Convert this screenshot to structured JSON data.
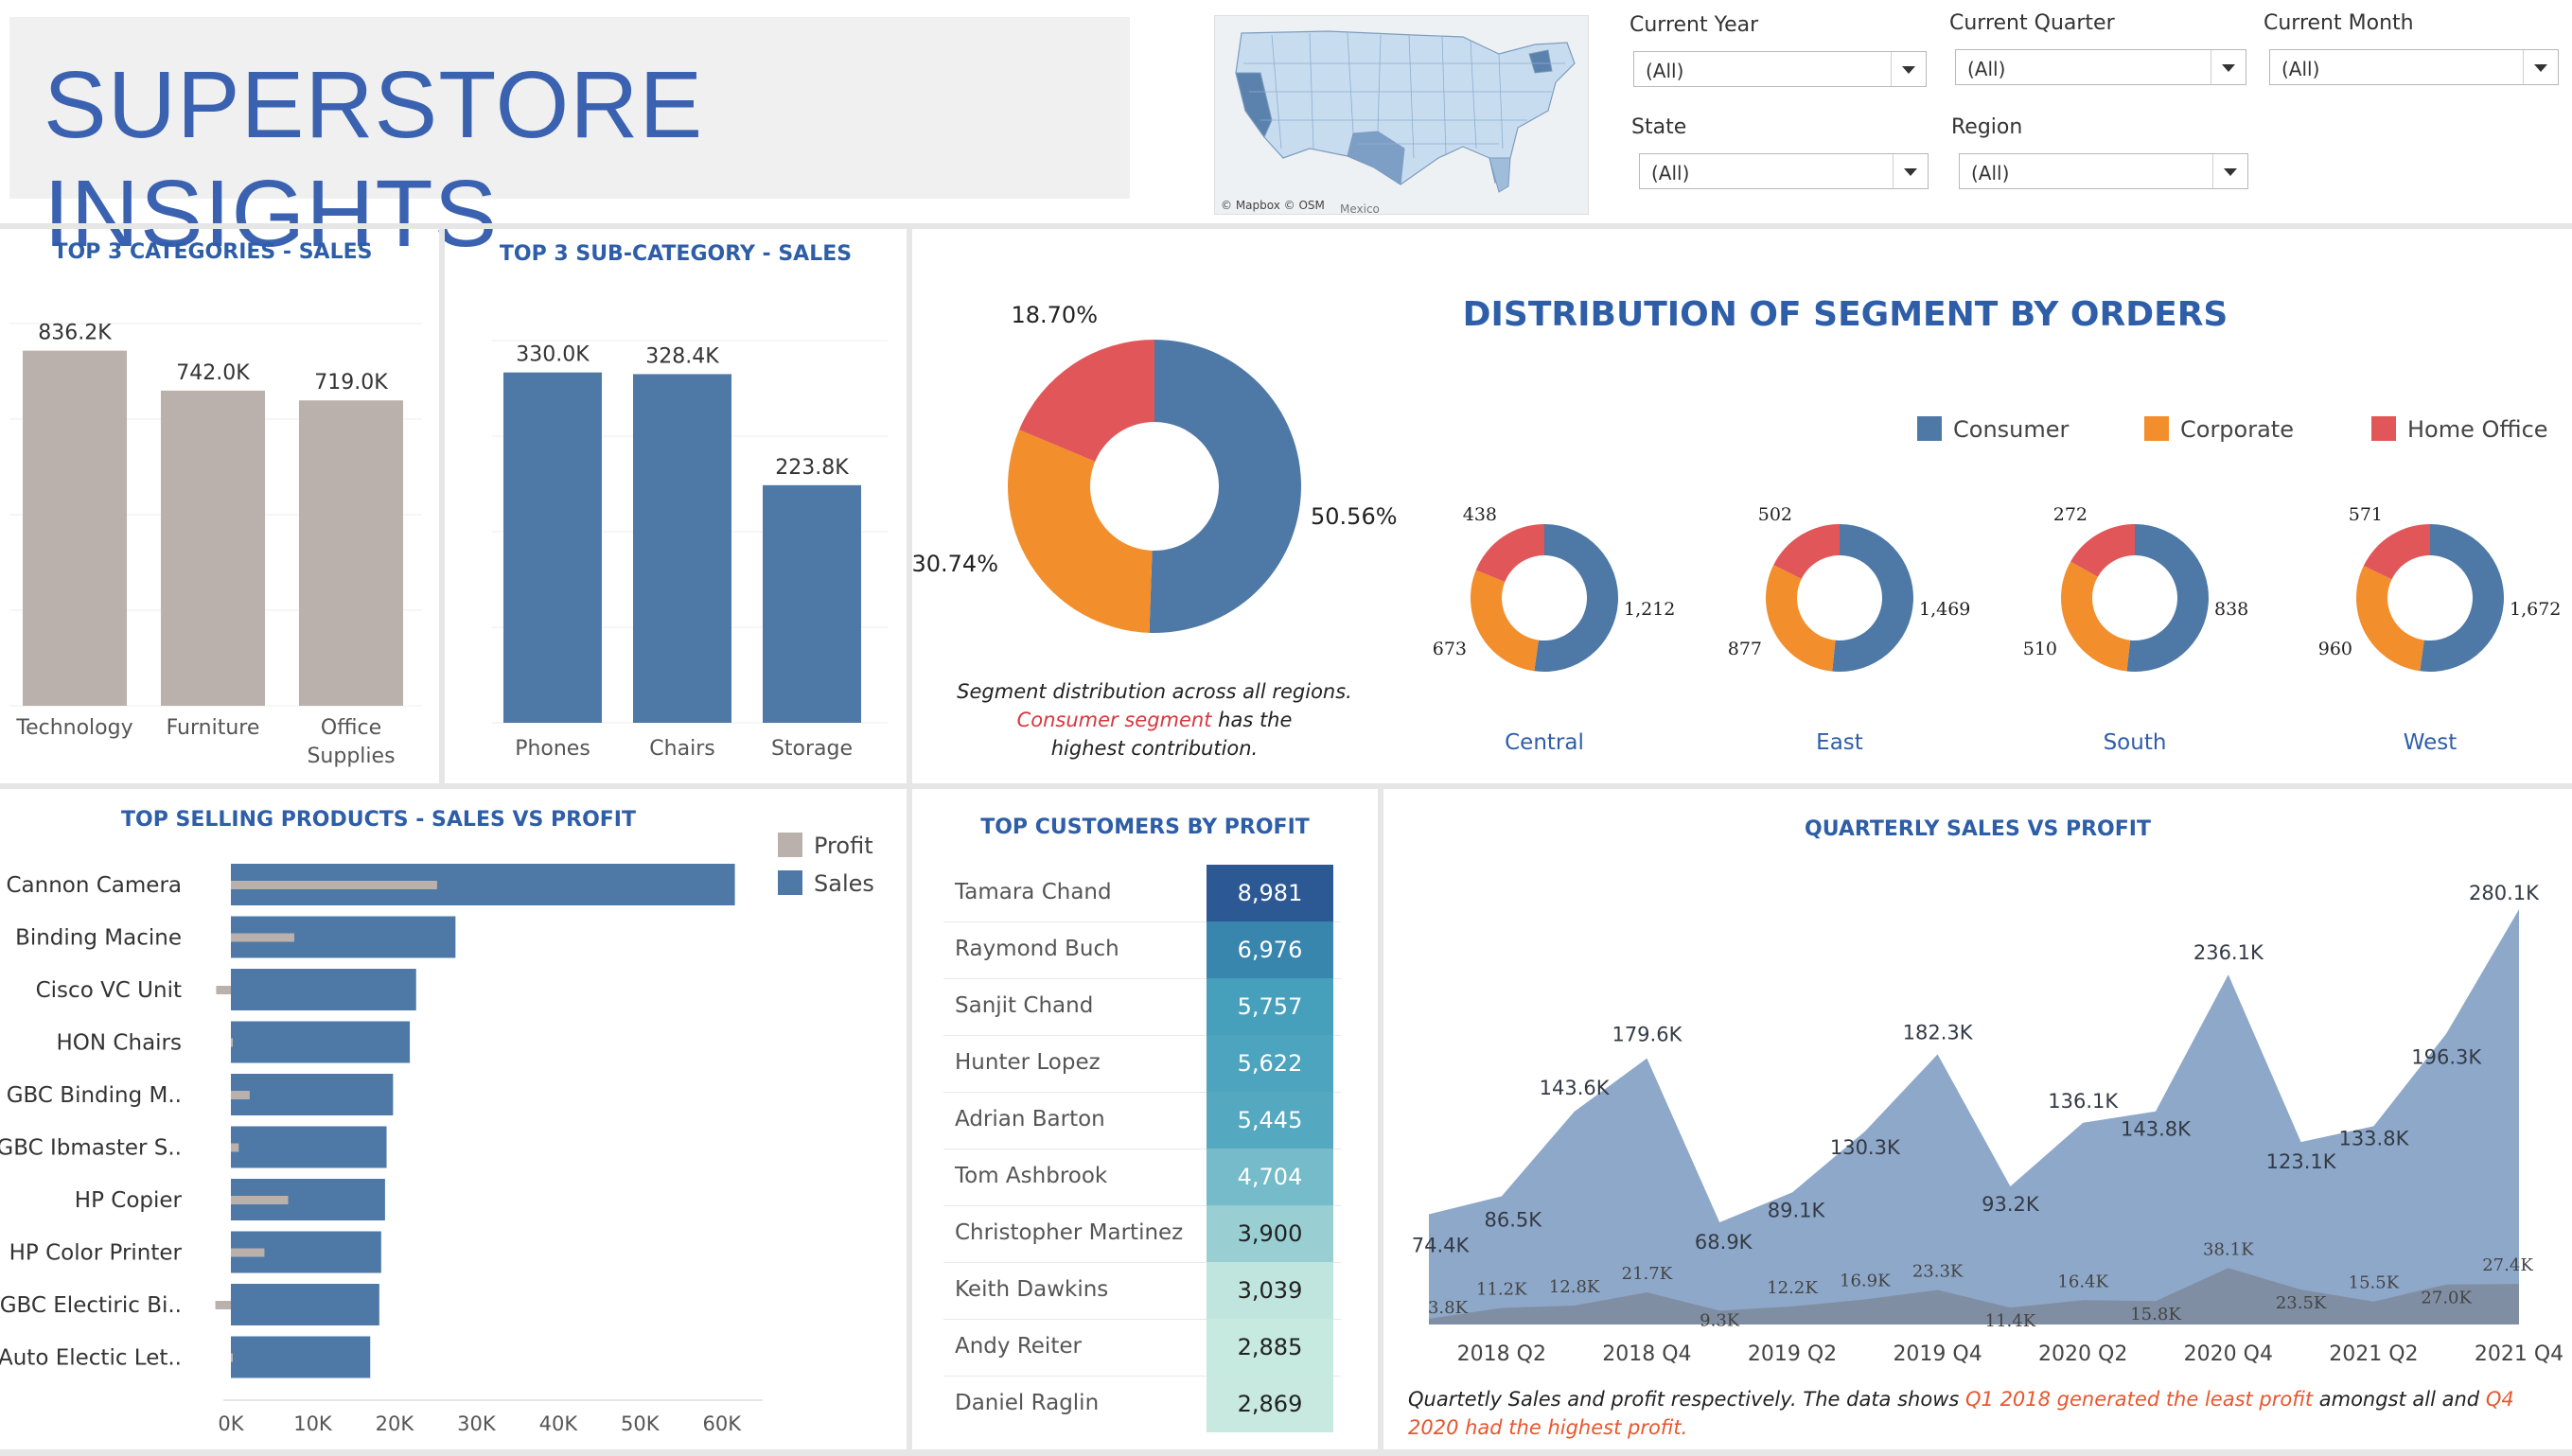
{
  "header": {
    "title": "SUPERSTORE INSIGHTS"
  },
  "map": {
    "attribution": "© Mapbox © OSM",
    "label_mexico": "Mexico"
  },
  "filters": [
    {
      "label": "Current Year",
      "value": "(All)"
    },
    {
      "label": "Current Quarter",
      "value": "(All)"
    },
    {
      "label": "Current Month",
      "value": "(All)"
    },
    {
      "label": "State",
      "value": "(All)"
    },
    {
      "label": "Region",
      "value": "(All)"
    }
  ],
  "top_categories": {
    "title": "TOP 3 CATEGORIES - SALES"
  },
  "top_subcategories": {
    "title": "TOP 3 SUB-CATEGORY - SALES"
  },
  "segment": {
    "title": "DISTRIBUTION OF SEGMENT BY ORDERS",
    "note_line1": "Segment distribution across all regions.",
    "note_line2_hl": "Consumer segment",
    "note_line2_rest": " has the",
    "note_line3": "highest contribution."
  },
  "top_products": {
    "title": "TOP SELLING PRODUCTS - SALES VS PROFIT"
  },
  "top_customers": {
    "title": "TOP CUSTOMERS BY PROFIT"
  },
  "quarterly": {
    "title": "QUARTERLY SALES VS PROFIT",
    "note_a": "Quartetly Sales and profit respectively. The data shows ",
    "note_b": "Q1 2018 generated the least profit",
    "note_c": " amongst all and  ",
    "note_d": "Q4",
    "note_e": "2020 had the highest profit."
  },
  "colors": {
    "consumer": "#4e79a7",
    "corporate": "#f28e2b",
    "home_office": "#e15759",
    "category_bar": "#bab0ac",
    "title_blue": "#2e5ea8",
    "area_sales": "#8ea8c9",
    "area_profit": "#7c8a9c"
  },
  "chart_data": [
    {
      "type": "bar",
      "title": "TOP 3 CATEGORIES - SALES",
      "categories": [
        "Technology",
        "Furniture",
        "Office Supplies"
      ],
      "category_lines": [
        [
          "Technology"
        ],
        [
          "Furniture"
        ],
        [
          "Office",
          "Supplies"
        ]
      ],
      "values": [
        836.2,
        742.0,
        719.0
      ],
      "value_labels": [
        "836.2K",
        "742.0K",
        "719.0K"
      ],
      "ylim": [
        0,
        900
      ],
      "color": "#bab0ac"
    },
    {
      "type": "bar",
      "title": "TOP 3 SUB-CATEGORY - SALES",
      "categories": [
        "Phones",
        "Chairs",
        "Storage"
      ],
      "values": [
        330.0,
        328.4,
        223.8
      ],
      "value_labels": [
        "330.0K",
        "328.4K",
        "223.8K"
      ],
      "ylim": [
        0,
        360
      ],
      "color": "#4e79a7"
    },
    {
      "type": "pie",
      "title": "DISTRIBUTION OF SEGMENT BY ORDERS",
      "legend": [
        "Consumer",
        "Corporate",
        "Home Office"
      ],
      "overall": {
        "values": [
          50.56,
          30.74,
          18.7
        ],
        "labels": [
          "50.56%",
          "30.74%",
          "18.70%"
        ]
      },
      "regions": [
        {
          "name": "Central",
          "values": [
            1212,
            673,
            438
          ],
          "labels": [
            "1,212",
            "673",
            "438"
          ]
        },
        {
          "name": "East",
          "values": [
            1469,
            877,
            502
          ],
          "labels": [
            "1,469",
            "877",
            "502"
          ]
        },
        {
          "name": "South",
          "values": [
            838,
            510,
            272
          ],
          "labels": [
            "838",
            "510",
            "272"
          ]
        },
        {
          "name": "West",
          "values": [
            1672,
            960,
            571
          ],
          "labels": [
            "1,672",
            "960",
            "571"
          ]
        }
      ]
    },
    {
      "type": "bar",
      "title": "TOP SELLING PRODUCTS - SALES VS PROFIT",
      "orientation": "horizontal",
      "categories": [
        "Cannon Camera",
        "Binding Macine",
        "Cisco VC Unit",
        "HON Chairs",
        "GBC Binding M..",
        "GBC Ibmaster S..",
        "HP Copier",
        "HP Color Printer",
        "GBC Electiric Bi..",
        "Auto Electic Let.."
      ],
      "series": [
        {
          "name": "Sales",
          "values": [
            61600,
            27450,
            22640,
            21870,
            19820,
            19030,
            18840,
            18370,
            18140,
            17030
          ]
        },
        {
          "name": "Profit",
          "values": [
            25200,
            7750,
            -1800,
            0,
            2300,
            960,
            7000,
            4100,
            -1900,
            0
          ]
        }
      ],
      "xticks": [
        "0K",
        "10K",
        "20K",
        "30K",
        "40K",
        "50K",
        "60K"
      ],
      "xlim": [
        0,
        65000
      ]
    },
    {
      "type": "table",
      "title": "TOP CUSTOMERS BY PROFIT",
      "rows": [
        {
          "name": "Tamara Chand",
          "value": 8981,
          "label": "8,981"
        },
        {
          "name": "Raymond Buch",
          "value": 6976,
          "label": "6,976"
        },
        {
          "name": "Sanjit Chand",
          "value": 5757,
          "label": "5,757"
        },
        {
          "name": "Hunter Lopez",
          "value": 5622,
          "label": "5,622"
        },
        {
          "name": "Adrian Barton",
          "value": 5445,
          "label": "5,445"
        },
        {
          "name": "Tom Ashbrook",
          "value": 4704,
          "label": "4,704"
        },
        {
          "name": "Christopher Martinez",
          "value": 3900,
          "label": "3,900"
        },
        {
          "name": "Keith Dawkins",
          "value": 3039,
          "label": "3,039"
        },
        {
          "name": "Andy Reiter",
          "value": 2885,
          "label": "2,885"
        },
        {
          "name": "Daniel Raglin",
          "value": 2869,
          "label": "2,869"
        }
      ]
    },
    {
      "type": "area",
      "title": "QUARTERLY SALES VS PROFIT",
      "x": [
        "2018 Q1",
        "2018 Q2",
        "2018 Q3",
        "2018 Q4",
        "2019 Q1",
        "2019 Q2",
        "2019 Q3",
        "2019 Q4",
        "2020 Q1",
        "2020 Q2",
        "2020 Q3",
        "2020 Q4",
        "2021 Q1",
        "2021 Q2",
        "2021 Q3",
        "2021 Q4"
      ],
      "xticks": [
        "2018 Q2",
        "2018 Q4",
        "2019 Q2",
        "2019 Q4",
        "2020 Q2",
        "2020 Q4",
        "2021 Q2",
        "2021 Q4"
      ],
      "series": [
        {
          "name": "Sales",
          "values": [
            74.4,
            86.5,
            143.6,
            179.6,
            68.9,
            89.1,
            130.3,
            182.3,
            93.2,
            136.1,
            143.8,
            236.1,
            123.1,
            133.8,
            196.3,
            280.1
          ],
          "labels": [
            "74.4K",
            "86.5K",
            "143.6K",
            "179.6K",
            "68.9K",
            "89.1K",
            "130.3K",
            "182.3K",
            "93.2K",
            "136.1K",
            "143.8K",
            "236.1K",
            "123.1K",
            "133.8K",
            "196.3K",
            "280.1K"
          ]
        },
        {
          "name": "Profit",
          "values": [
            3.8,
            11.2,
            12.8,
            21.7,
            9.3,
            12.2,
            16.9,
            23.3,
            11.4,
            16.4,
            15.8,
            38.1,
            23.5,
            15.5,
            27.0,
            27.4
          ],
          "labels": [
            "3.8K",
            "11.2K",
            "12.8K",
            "21.7K",
            "9.3K",
            "12.2K",
            "16.9K",
            "23.3K",
            "11.4K",
            "16.4K",
            "15.8K",
            "38.1K",
            "23.5K",
            "15.5K",
            "27.0K",
            "27.4K"
          ]
        }
      ],
      "ylim": [
        0,
        300
      ]
    }
  ]
}
